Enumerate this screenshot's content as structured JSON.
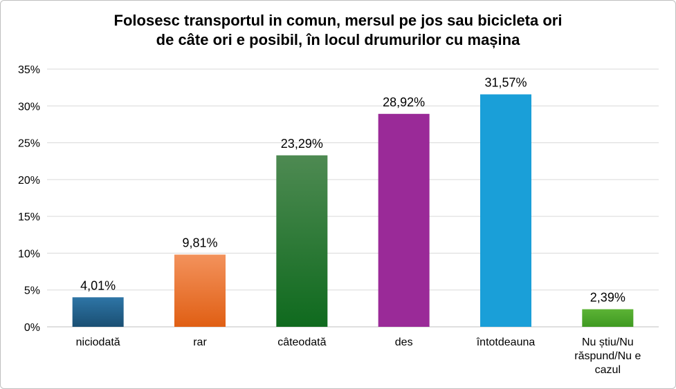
{
  "chart_data": {
    "type": "bar",
    "title_lines": [
      "Folosesc transportul in comun, mersul pe jos sau bicicleta ori",
      "de câte ori e posibil, în locul drumurilor cu mașina"
    ],
    "categories": [
      [
        "niciodată"
      ],
      [
        "rar"
      ],
      [
        "câteodată"
      ],
      [
        "des"
      ],
      [
        "întotdeauna"
      ],
      [
        "Nu știu/Nu",
        "răspund/Nu e",
        "cazul"
      ]
    ],
    "values": [
      4.01,
      9.81,
      23.29,
      28.92,
      31.57,
      2.39
    ],
    "value_labels": [
      "4,01%",
      "9,81%",
      "23,29%",
      "28,92%",
      "31,57%",
      "2,39%"
    ],
    "ylim": [
      0,
      35
    ],
    "y_ticks": [
      0,
      5,
      10,
      15,
      20,
      25,
      30,
      35
    ],
    "y_tick_labels": [
      "0%",
      "5%",
      "10%",
      "15%",
      "20%",
      "25%",
      "30%",
      "35%"
    ],
    "grid": true,
    "legend": "none",
    "bar_colors": [
      [
        "#2e75a6",
        "#1a4f73"
      ],
      [
        "#f3925c",
        "#e05f14"
      ],
      [
        "#4e8a52",
        "#0f6a1e"
      ],
      [
        "#9a2a98",
        "#9a2a98"
      ],
      [
        "#1a9fd8",
        "#1a9fd8"
      ],
      [
        "#5cb335",
        "#3f9a22"
      ]
    ],
    "grid_color": "#d9d9d9",
    "axis_color": "#bfbfbf"
  }
}
